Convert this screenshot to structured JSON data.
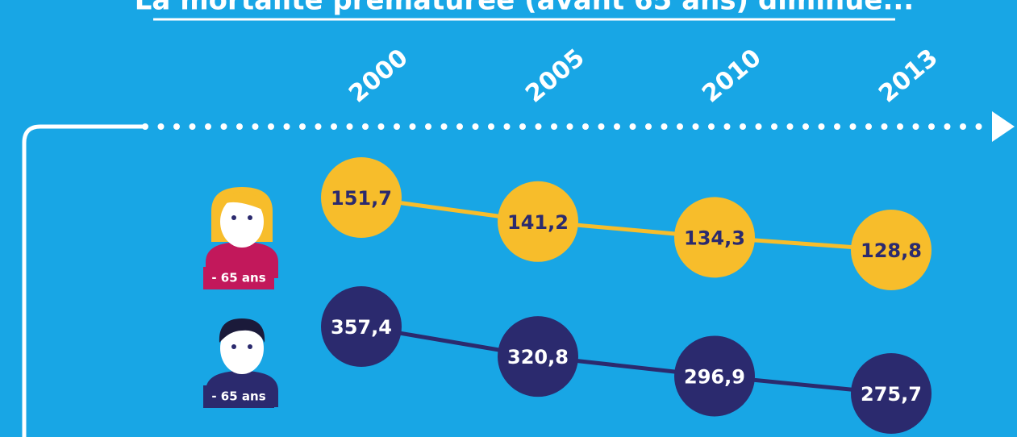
{
  "chart_data": {
    "type": "line",
    "title": "La mortalité prématurée (avant 65 ans) diminue...",
    "categories": [
      "2000",
      "2005",
      "2010",
      "2013"
    ],
    "series": [
      {
        "name": "- 65 ans",
        "color": "#f7bd2b",
        "values": [
          151.7,
          141.2,
          134.3,
          128.8
        ],
        "value_labels": [
          "151,7",
          "141,2",
          "134,3",
          "128,8"
        ]
      },
      {
        "name": "- 65 ans",
        "color": "#2b2a6e",
        "values": [
          357.4,
          320.8,
          296.9,
          275.7
        ],
        "value_labels": [
          "357,4",
          "320,8",
          "296,9",
          "275,7"
        ]
      }
    ]
  }
}
